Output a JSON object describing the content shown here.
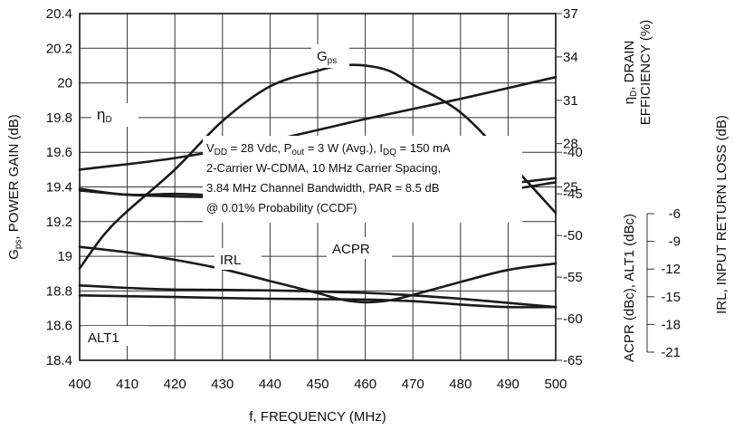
{
  "chart_data": {
    "type": "line",
    "xlabel": "f, FREQUENCY (MHz)",
    "x_ticks": [
      "400",
      "410",
      "420",
      "430",
      "440",
      "450",
      "460",
      "470",
      "480",
      "490",
      "500"
    ],
    "xlim": [
      400,
      500
    ],
    "y_left": {
      "label_parts": [
        "G",
        "ps",
        ", POWER GAIN (dB)"
      ],
      "ticks": [
        "20.4",
        "20.2",
        "20",
        "19.8",
        "19.6",
        "19.4",
        "19.2",
        "19",
        "18.8",
        "18.6",
        "18.4"
      ],
      "lim": [
        18.4,
        20.4
      ]
    },
    "y_right_eff": {
      "label_line1_parts": [
        "η",
        "D",
        ", DRAIN"
      ],
      "label_line2": "EFFICIENCY (%)",
      "ticks": [
        "37",
        "34",
        "31",
        "28",
        "25"
      ],
      "lim": [
        13,
        37
      ]
    },
    "y_right_acpr": {
      "label": "ACPR (dBc), ALT1 (dBc)",
      "ticks": [
        "-40",
        "-45",
        "-50",
        "-55",
        "-60",
        "-65"
      ],
      "lim": [
        -65,
        -40
      ]
    },
    "y_right_irl": {
      "label": "IRL, INPUT RETURN LOSS (dB)",
      "ticks": [
        "-6",
        "-9",
        "-12",
        "-15",
        "-18",
        "-21"
      ],
      "lim": [
        -21,
        -6
      ]
    },
    "annotation_lines": [
      [
        [
          "V",
          "n"
        ],
        [
          "DD",
          "s"
        ],
        [
          " = 28 Vdc, P",
          "n"
        ],
        [
          "out",
          "s"
        ],
        [
          " = 3 W (Avg.), I",
          "n"
        ],
        [
          "DQ",
          "s"
        ],
        [
          " = 150 mA",
          "n"
        ]
      ],
      [
        [
          "2-Carrier W-CDMA, 10 MHz Carrier Spacing,",
          "n"
        ]
      ],
      [
        [
          "3.84 MHz Channel Bandwidth, PAR = 8.5 dB",
          "n"
        ]
      ],
      [
        [
          "@ 0.01% Probability (CCDF)",
          "n"
        ]
      ]
    ],
    "series": [
      {
        "name": "Gps",
        "label_parts": [
          "G",
          "ps"
        ],
        "axis": "left",
        "x": [
          400,
          405,
          410,
          420,
          430,
          440,
          450,
          455,
          460,
          465,
          470,
          480,
          490,
          500
        ],
        "y": [
          18.93,
          19.12,
          19.26,
          19.5,
          19.78,
          19.98,
          20.07,
          20.1,
          20.1,
          20.07,
          19.99,
          19.83,
          19.55,
          19.25
        ]
      },
      {
        "name": "ηD",
        "label_parts": [
          "η",
          "D"
        ],
        "axis": "eff",
        "x": [
          400,
          420,
          440,
          460,
          480,
          500
        ],
        "y": [
          26.2,
          27.0,
          28.2,
          29.7,
          31.1,
          32.6
        ]
      },
      {
        "name": "IRL",
        "label_parts": [
          "IRL"
        ],
        "axis": "irl",
        "x": [
          400,
          410,
          420,
          430,
          440,
          450,
          455,
          460,
          465,
          470,
          480,
          490,
          500
        ],
        "y": [
          -9.6,
          -10.2,
          -11.0,
          -12.0,
          -13.3,
          -14.6,
          -15.3,
          -15.6,
          -15.4,
          -14.8,
          -13.4,
          -12.1,
          -11.4
        ]
      },
      {
        "name": "ACPR",
        "label_parts": [
          "ACPR"
        ],
        "axis": "acpr",
        "x": [
          400,
          410,
          420,
          430,
          440,
          450,
          460,
          470,
          480,
          490,
          500
        ],
        "y": [
          -44.6,
          -45.1,
          -45.3,
          -45.4,
          -45.3,
          -45.5,
          -45.4,
          -45.3,
          -45.0,
          -44.5,
          -43.6
        ]
      },
      {
        "name": "ACPR 2",
        "label_parts": [],
        "axis": "acpr",
        "x": [
          400,
          410,
          420,
          430,
          440,
          450,
          460,
          470,
          480,
          490,
          500
        ],
        "y": [
          -44.4,
          -45.1,
          -45.0,
          -45.2,
          -45.2,
          -45.2,
          -45.1,
          -45.0,
          -44.6,
          -43.8,
          -43.1
        ]
      },
      {
        "name": "ALT1",
        "label_parts": [
          "ALT1"
        ],
        "axis": "acpr",
        "x": [
          400,
          420,
          440,
          460,
          470,
          480,
          490,
          500
        ],
        "y": [
          -57.2,
          -57.4,
          -57.6,
          -57.7,
          -57.9,
          -58.3,
          -58.6,
          -58.6
        ]
      },
      {
        "name": "ALT1 2",
        "label_parts": [],
        "axis": "acpr",
        "x": [
          400,
          410,
          420,
          440,
          460,
          470,
          480,
          490,
          500
        ],
        "y": [
          -56.0,
          -56.3,
          -56.5,
          -56.6,
          -56.9,
          -57.2,
          -57.6,
          -58.1,
          -58.6
        ]
      }
    ]
  }
}
